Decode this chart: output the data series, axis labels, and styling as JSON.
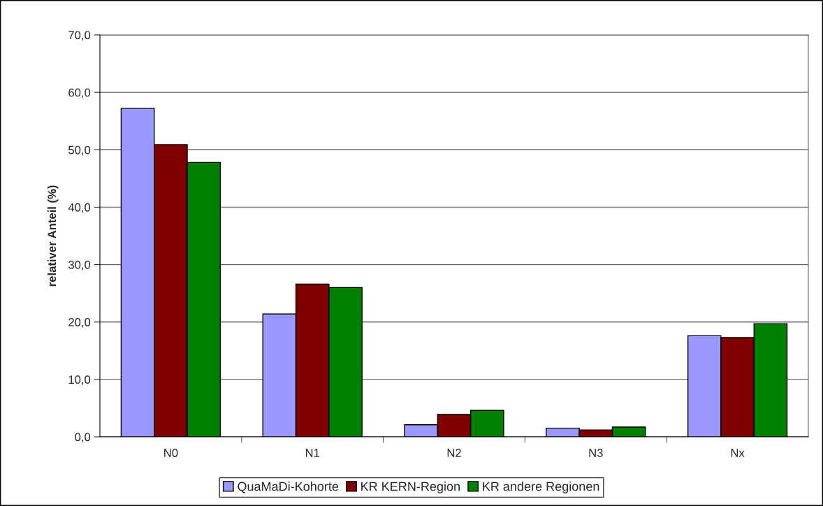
{
  "chart_data": {
    "type": "bar",
    "ylabel": "relativer Anteil (%)",
    "categories": [
      "N0",
      "N1",
      "N2",
      "N3",
      "Nx"
    ],
    "series": [
      {
        "name": "QuaMaDi-Kohorte",
        "color": "#9999ff",
        "values": [
          57.2,
          21.4,
          2.1,
          1.5,
          17.6
        ]
      },
      {
        "name": "KR KERN-Region",
        "color": "#800000",
        "values": [
          50.9,
          26.6,
          3.9,
          1.2,
          17.3
        ]
      },
      {
        "name": "KR andere Regionen",
        "color": "#008000",
        "values": [
          47.8,
          26.0,
          4.6,
          1.7,
          19.7
        ]
      }
    ],
    "ylim": [
      0,
      70
    ],
    "yticks": [
      {
        "value": 0,
        "label": "0,0"
      },
      {
        "value": 10,
        "label": "10,0"
      },
      {
        "value": 20,
        "label": "20,0"
      },
      {
        "value": 30,
        "label": "30,0"
      },
      {
        "value": 40,
        "label": "40,0"
      },
      {
        "value": 50,
        "label": "50,0"
      },
      {
        "value": 60,
        "label": "60,0"
      },
      {
        "value": 70,
        "label": "70,0"
      }
    ],
    "grid": "y",
    "legend": "bottom"
  }
}
